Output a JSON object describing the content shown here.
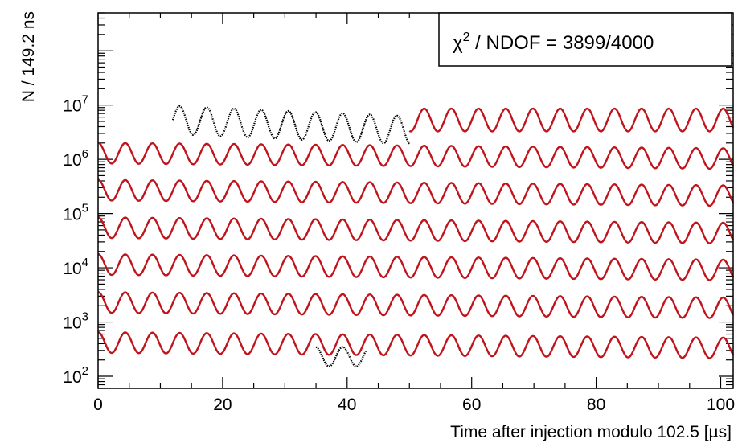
{
  "chart_data": {
    "type": "line",
    "title": "",
    "xlabel": "Time after injection modulo 102.5 [µs]",
    "ylabel": "N / 149.2 ns",
    "xlim": [
      0,
      102
    ],
    "ylim": [
      60,
      500000000
    ],
    "y_scale": "log",
    "grid": false,
    "x_ticks": [
      "0",
      "20",
      "40",
      "60",
      "80",
      "100"
    ],
    "y_ticks": [
      {
        "base": "10",
        "exp": "2"
      },
      {
        "base": "10",
        "exp": "3"
      },
      {
        "base": "10",
        "exp": "4"
      },
      {
        "base": "10",
        "exp": "5"
      },
      {
        "base": "10",
        "exp": "6"
      },
      {
        "base": "10",
        "exp": "7"
      }
    ],
    "annotation": {
      "chi_symbol": "χ",
      "chi_exp": "2",
      "text": " / NDOF = 3899/4000",
      "position": "top-right"
    },
    "wiggle_period_us": 4.365,
    "series": [
      {
        "kind": "data",
        "x_range": [
          12,
          50
        ],
        "y_center": 5300000,
        "amplitude_decades": 0.26,
        "decay": 0.5,
        "color": "#000000"
      },
      {
        "kind": "fit",
        "x_range": [
          50,
          102
        ],
        "y_center": 5300000,
        "amplitude_decades": 0.21,
        "decay": 0.0,
        "color": "#c0141c"
      },
      {
        "kind": "fit",
        "x_range": [
          0,
          102
        ],
        "y_center": 1300000,
        "amplitude_decades": 0.19,
        "decay": 0.1,
        "color": "#c0141c"
      },
      {
        "kind": "fit",
        "x_range": [
          0,
          102
        ],
        "y_center": 270000,
        "amplitude_decades": 0.19,
        "decay": 0.1,
        "color": "#c0141c"
      },
      {
        "kind": "fit",
        "x_range": [
          0,
          102
        ],
        "y_center": 55000,
        "amplitude_decades": 0.19,
        "decay": 0.1,
        "color": "#c0141c"
      },
      {
        "kind": "fit",
        "x_range": [
          0,
          102
        ],
        "y_center": 11500,
        "amplitude_decades": 0.19,
        "decay": 0.1,
        "color": "#c0141c"
      },
      {
        "kind": "fit",
        "x_range": [
          0,
          102
        ],
        "y_center": 2300,
        "amplitude_decades": 0.19,
        "decay": 0.1,
        "color": "#c0141c"
      },
      {
        "kind": "fit",
        "x_range": [
          0,
          102
        ],
        "y_center": 420,
        "amplitude_decades": 0.19,
        "decay": 0.1,
        "color": "#c0141c"
      },
      {
        "kind": "data",
        "x_range": [
          35,
          43
        ],
        "y_center": 230,
        "amplitude_decades": 0.18,
        "decay": 0.0,
        "color": "#000000"
      }
    ]
  }
}
